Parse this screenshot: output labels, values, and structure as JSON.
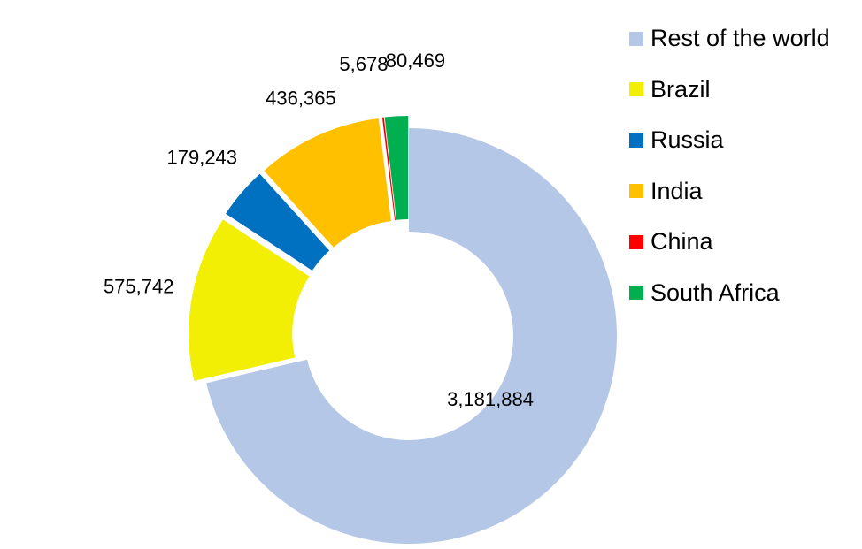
{
  "chart_data": {
    "type": "pie",
    "variant": "exploded donut",
    "title": "",
    "slices": [
      {
        "label": "Rest of the world",
        "value": 3181884,
        "display": "3,181,884",
        "color": "#B4C7E7"
      },
      {
        "label": "Brazil",
        "value": 575742,
        "display": "575,742",
        "color": "#F2EE04"
      },
      {
        "label": "Russia",
        "value": 179243,
        "display": "179,243",
        "color": "#0070C0"
      },
      {
        "label": "India",
        "value": 436365,
        "display": "436,365",
        "color": "#FFC000"
      },
      {
        "label": "China",
        "value": 5678,
        "display": "5,678",
        "color": "#FF0000"
      },
      {
        "label": "South Africa",
        "value": 80469,
        "display": "80,469",
        "color": "#00B050"
      }
    ],
    "legend_position": "right"
  }
}
